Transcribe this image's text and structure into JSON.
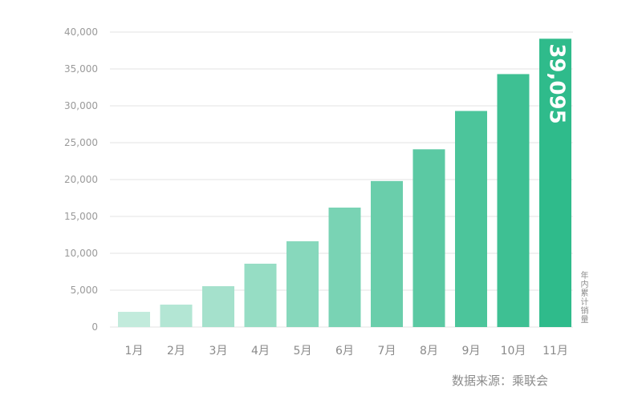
{
  "chart_data": {
    "type": "bar",
    "categories": [
      "1月",
      "2月",
      "3月",
      "4月",
      "5月",
      "6月",
      "7月",
      "8月",
      "9月",
      "10月",
      "11月"
    ],
    "values": [
      2060,
      3040,
      5540,
      8590,
      11630,
      16200,
      19800,
      24100,
      29300,
      34300,
      39095
    ],
    "ylim": [
      0,
      40000
    ],
    "yticks": [
      "0",
      "5,000",
      "10,000",
      "15,000",
      "20,000",
      "25,000",
      "30,000",
      "35,000",
      "40,000"
    ],
    "grid": true,
    "highlight_label": "39,095",
    "series_label": "年内累计销量",
    "colors": {
      "start": "#c2ebdc",
      "end": "#2fbb8b"
    }
  },
  "source": "数据来源：乘联会"
}
